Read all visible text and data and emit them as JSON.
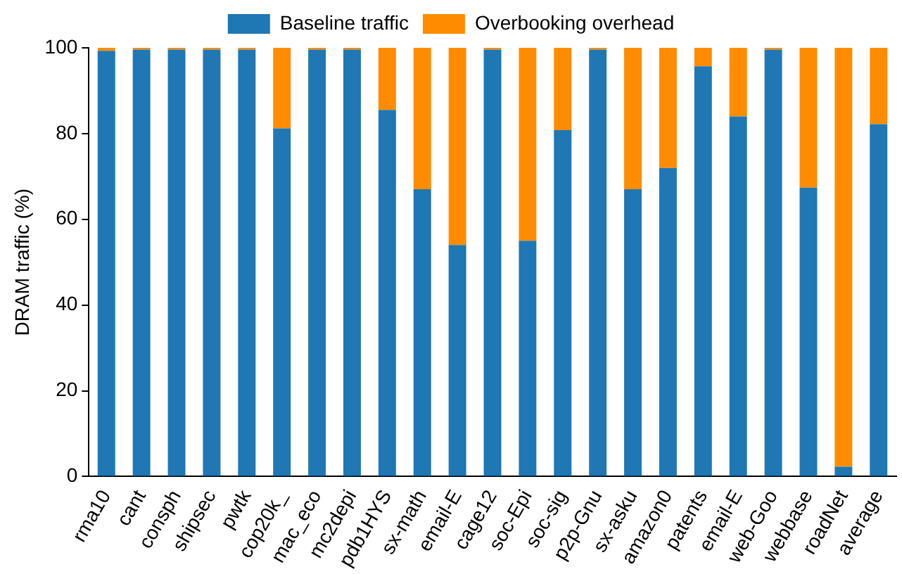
{
  "chart_data": {
    "type": "bar",
    "stacked": true,
    "ylabel": "DRAM traffic (%)",
    "categories": [
      "rma10",
      "cant",
      "consph",
      "shipsec",
      "pwtk",
      "cop20k_",
      "mac_eco",
      "mc2depi",
      "pdb1HYS",
      "sx-math",
      "email-E",
      "cage12",
      "soc-Epi",
      "soc-sig",
      "p2p-Gnu",
      "sx-asku",
      "amazon0",
      "patents",
      "email-E",
      "web-Goo",
      "webbase",
      "roadNet",
      "average"
    ],
    "series": [
      {
        "name": "Baseline traffic",
        "color": "#1f77b4",
        "values": [
          99.3,
          99.6,
          99.6,
          99.6,
          99.6,
          81.2,
          99.6,
          99.6,
          85.5,
          67,
          54,
          99.6,
          55,
          80.8,
          99.6,
          67,
          72,
          95.7,
          84,
          99.6,
          67.4,
          2.3,
          82.2
        ]
      },
      {
        "name": "Overbooking overhead",
        "color": "#ff8c00",
        "values": [
          0.7,
          0.4,
          0.4,
          0.4,
          0.4,
          18.8,
          0.4,
          0.4,
          14.5,
          33,
          46,
          0.4,
          45,
          19.2,
          0.4,
          33,
          28,
          4.3,
          16,
          0.4,
          32.6,
          97.7,
          17.8
        ]
      }
    ],
    "ylim": [
      0,
      100
    ],
    "yticks": [
      0,
      20,
      40,
      60,
      80,
      100
    ],
    "grid": false,
    "legend": "top"
  }
}
